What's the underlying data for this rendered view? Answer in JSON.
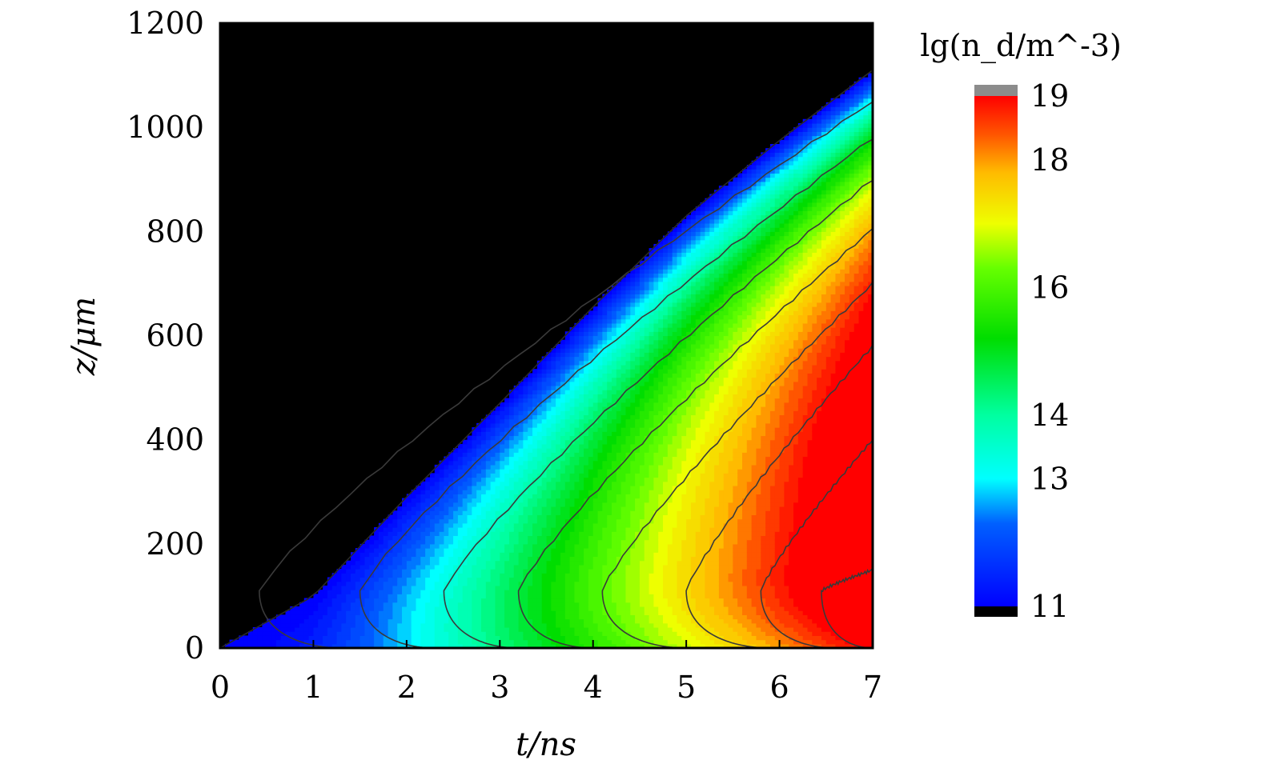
{
  "chart_data": {
    "type": "heatmap",
    "xlabel": "t/ns",
    "ylabel": "z/μm",
    "xlim": [
      0,
      7
    ],
    "ylim": [
      0,
      1200
    ],
    "xticks": [
      "0",
      "1",
      "2",
      "3",
      "4",
      "5",
      "6",
      "7"
    ],
    "yticks": [
      "0",
      "200",
      "400",
      "600",
      "800",
      "1000",
      "1200"
    ],
    "colorbar": {
      "title": "lg(n_d/m^-3)",
      "ticks": [
        "11",
        "13",
        "14",
        "16",
        "18",
        "19"
      ],
      "tick_values": [
        11,
        13,
        14,
        16,
        18,
        19
      ],
      "range": [
        11,
        19
      ],
      "under_color": "#000000",
      "over_color": "#8c8c8c",
      "stops": [
        {
          "v": 11,
          "color": "#0000ff"
        },
        {
          "v": 12.3,
          "color": "#0060ff"
        },
        {
          "v": 13,
          "color": "#00ffff"
        },
        {
          "v": 14,
          "color": "#00ffa0"
        },
        {
          "v": 15.2,
          "color": "#00dd00"
        },
        {
          "v": 16.3,
          "color": "#66ff00"
        },
        {
          "v": 17,
          "color": "#eeff00"
        },
        {
          "v": 17.8,
          "color": "#ffbb00"
        },
        {
          "v": 18.4,
          "color": "#ff5500"
        },
        {
          "v": 19,
          "color": "#ff0000"
        }
      ]
    },
    "front_boundary": [
      [
        0,
        0
      ],
      [
        1,
        100
      ],
      [
        2,
        290
      ],
      [
        3,
        470
      ],
      [
        4,
        655
      ],
      [
        5,
        830
      ],
      [
        6,
        975
      ],
      [
        7,
        1110
      ]
    ],
    "contours": [
      {
        "t0": 0.42,
        "at_ground": 1.3,
        "t_end": 1050
      },
      {
        "t0": 1.5,
        "at_ground": 2.3,
        "t_end": 980
      },
      {
        "t0": 2.4,
        "at_ground": 3.2,
        "t_end": 900
      },
      {
        "t0": 3.2,
        "at_ground": 4.0,
        "t_end": 805
      },
      {
        "t0": 4.1,
        "at_ground": 5.0,
        "t_end": 700
      },
      {
        "t0": 5.0,
        "at_ground": 5.9,
        "t_end": 580
      },
      {
        "t0": 5.8,
        "at_ground": 6.6,
        "t_end": 400
      },
      {
        "t0": 6.45,
        "at_ground": 7.0,
        "t_end": 150
      }
    ]
  }
}
